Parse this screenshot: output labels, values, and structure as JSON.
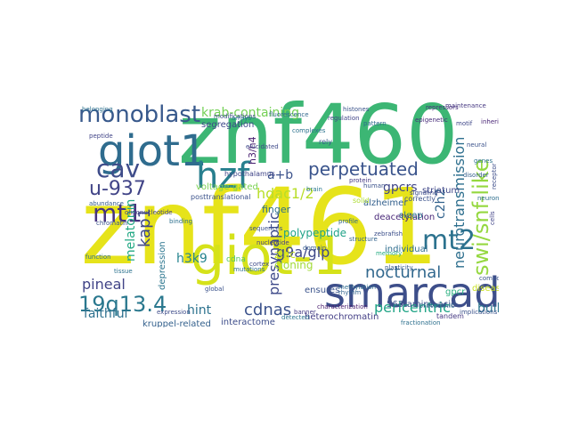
{
  "words": [
    {
      "text": "znf461",
      "color": "#e6e31a"
    },
    {
      "text": "znf460",
      "color": "#3cb674"
    },
    {
      "text": "giot-1",
      "color": "#d5e21a"
    },
    {
      "text": "smarcad1",
      "color": "#3d4e8a"
    },
    {
      "text": "giot1",
      "color": "#2f6c8e"
    },
    {
      "text": "hzf",
      "color": "#277f8e"
    },
    {
      "text": "monoblast",
      "color": "#38598c"
    },
    {
      "text": "swi/snf-like",
      "color": "#95d840"
    },
    {
      "text": "mt1",
      "color": "#46327e"
    },
    {
      "text": "mt2",
      "color": "#2c728e"
    },
    {
      "text": "cav",
      "color": "#3e4c8a"
    },
    {
      "text": "u-937",
      "color": "#414487"
    },
    {
      "text": "19q13.4",
      "color": "#2a788e"
    },
    {
      "text": "perpetuated",
      "color": "#3a548c"
    },
    {
      "text": "neurotransmission",
      "color": "#2e6f8e"
    },
    {
      "text": "g9a/glp",
      "color": "#3f4889"
    },
    {
      "text": "krab-containing",
      "color": "#74d055"
    },
    {
      "text": "nocturnal",
      "color": "#31688e"
    },
    {
      "text": "cdnas",
      "color": "#3b528b"
    },
    {
      "text": "pericentric",
      "color": "#20a486"
    },
    {
      "text": "presynaptic",
      "color": "#3e4a89"
    },
    {
      "text": "hdac1/2",
      "color": "#b8de29"
    },
    {
      "text": "melatonin",
      "color": "#22a884"
    },
    {
      "text": "faithful",
      "color": "#2d708e"
    },
    {
      "text": "pineal",
      "color": "#414487"
    },
    {
      "text": "hint",
      "color": "#2c728e"
    },
    {
      "text": "built",
      "color": "#2a768e"
    },
    {
      "text": "kap1",
      "color": "#3f4788"
    },
    {
      "text": "h3k9",
      "color": "#25848e"
    },
    {
      "text": "a+b",
      "color": "#3b528b"
    },
    {
      "text": "c2h2",
      "color": "#33638d"
    },
    {
      "text": "gpcrs",
      "color": "#404688"
    },
    {
      "text": "h3/h4",
      "color": "#481f70"
    },
    {
      "text": "finger",
      "color": "#2e6e8e"
    },
    {
      "text": "voltage-gated",
      "color": "#7ad151"
    },
    {
      "text": "polypeptide",
      "color": "#1fa287"
    },
    {
      "text": "ensures",
      "color": "#3a538b"
    },
    {
      "text": "heterochromatin",
      "color": "#433e85"
    },
    {
      "text": "kruppel-related",
      "color": "#34618d"
    },
    {
      "text": "interactome",
      "color": "#3d4d8a"
    },
    {
      "text": "depression",
      "color": "#2b758e"
    },
    {
      "text": "563-amino-acid",
      "color": "#3b528b"
    },
    {
      "text": "individual",
      "color": "#2e6d8e"
    },
    {
      "text": "alzheimer",
      "color": "#34608d"
    },
    {
      "text": "deacetylation",
      "color": "#482878"
    },
    {
      "text": "gpcr",
      "color": "#29af7f"
    },
    {
      "text": "zinc",
      "color": "#c2df23"
    },
    {
      "text": "cloning",
      "color": "#a2da37"
    },
    {
      "text": "sleep",
      "color": "#2c738e"
    },
    {
      "text": "disease",
      "color": "#c8e020"
    },
    {
      "text": "striatum",
      "color": "#3f4788"
    },
    {
      "text": "segregation",
      "color": "#3e4989"
    },
    {
      "text": "hypothalamus",
      "color": "#404588"
    },
    {
      "text": "correctly",
      "color": "#3b528b"
    },
    {
      "text": "posttranslational",
      "color": "#3b528b"
    },
    {
      "text": "proteomic",
      "color": "#2e6e8e"
    },
    {
      "text": "tandem",
      "color": "#453882"
    },
    {
      "text": "rely",
      "color": "#365c8d"
    },
    {
      "text": "solid",
      "color": "#addc30"
    },
    {
      "text": "histones",
      "color": "#3a538b"
    },
    {
      "text": "repressors",
      "color": "#472d7b"
    },
    {
      "text": "signaling",
      "color": "#3d4d8a"
    },
    {
      "text": "cdna",
      "color": "#52c569"
    },
    {
      "text": "characterization",
      "color": "#481b6d"
    },
    {
      "text": "fractionation",
      "color": "#2d708e"
    },
    {
      "text": "plasticity",
      "color": "#375a8c"
    },
    {
      "text": "modifications",
      "color": "#3d4e8a"
    },
    {
      "text": "fluorescence",
      "color": "#31688e"
    },
    {
      "text": "pattern",
      "color": "#2f6b8e"
    },
    {
      "text": "memory",
      "color": "#25ab82"
    },
    {
      "text": "global",
      "color": "#3b528b"
    },
    {
      "text": "nucleotide",
      "color": "#424086"
    },
    {
      "text": "belonging",
      "color": "#2d718e"
    },
    {
      "text": "peptide",
      "color": "#414487"
    },
    {
      "text": "neural",
      "color": "#3b528b"
    },
    {
      "text": "complexes",
      "color": "#2c728e"
    },
    {
      "text": "arrays",
      "color": "#2a768e"
    },
    {
      "text": "circadian",
      "color": "#3f4788"
    },
    {
      "text": "banner",
      "color": "#443a83"
    },
    {
      "text": "mutations",
      "color": "#2d708e"
    },
    {
      "text": "cortex",
      "color": "#3e4a89"
    },
    {
      "text": "profile",
      "color": "#31688e"
    },
    {
      "text": "zebrafish",
      "color": "#3c4f8a"
    },
    {
      "text": "disorder",
      "color": "#34608d"
    },
    {
      "text": "epigenetic",
      "color": "#472c7a"
    },
    {
      "text": "implications",
      "color": "#3b528b"
    },
    {
      "text": "abundance",
      "color": "#365c8d"
    },
    {
      "text": "elucidated",
      "color": "#3e4989"
    },
    {
      "text": "methylation",
      "color": "#2f6c8e"
    },
    {
      "text": "inherited",
      "color": "#482475"
    },
    {
      "text": "chromatin",
      "color": "#3b528b"
    },
    {
      "text": "neurons",
      "color": "#2e6e8e"
    },
    {
      "text": "regulation",
      "color": "#404588"
    },
    {
      "text": "structure",
      "color": "#33638d"
    },
    {
      "text": "compounds",
      "color": "#3a548c"
    },
    {
      "text": "tissue",
      "color": "#2c728e"
    },
    {
      "text": "maintenance",
      "color": "#453781"
    },
    {
      "text": "receptor",
      "color": "#3d4d8a"
    },
    {
      "text": "function",
      "color": "#2e6f8e"
    },
    {
      "text": "oligonucleotide",
      "color": "#414287"
    },
    {
      "text": "sequences",
      "color": "#3b528b"
    },
    {
      "text": "detected",
      "color": "#2b748e"
    },
    {
      "text": "expression",
      "color": "#3e4c8a"
    },
    {
      "text": "rhythm",
      "color": "#32658e"
    },
    {
      "text": "brain",
      "color": "#2a788e"
    },
    {
      "text": "cells",
      "color": "#414487"
    },
    {
      "text": "human",
      "color": "#3b528b"
    },
    {
      "text": "binding",
      "color": "#2d708e"
    },
    {
      "text": "protein",
      "color": "#453882"
    },
    {
      "text": "genes",
      "color": "#2c738e"
    },
    {
      "text": "motif",
      "color": "#3f4788"
    },
    {
      "text": "domain",
      "color": "#365c8d"
    }
  ]
}
